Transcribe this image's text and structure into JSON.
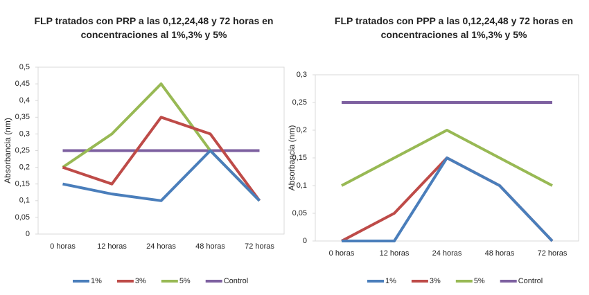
{
  "chart_data": [
    {
      "type": "line",
      "title": "FLP tratados con PRP a las 0,12,24,48 y 72 horas en concentraciones al 1%,3% y 5%",
      "y_label": "Absorbancia (nm)",
      "categories": [
        "0 horas",
        "12 horas",
        "24 horas",
        "48 horas",
        "72 horas"
      ],
      "series": [
        {
          "name": "1%",
          "color": "#4a7ebb",
          "values": [
            0.15,
            0.12,
            0.1,
            0.25,
            0.1
          ]
        },
        {
          "name": "3%",
          "color": "#be4b48",
          "values": [
            0.2,
            0.15,
            0.35,
            0.3,
            0.1
          ]
        },
        {
          "name": "5%",
          "color": "#98b954",
          "values": [
            0.2,
            0.3,
            0.45,
            0.25,
            0.1
          ]
        },
        {
          "name": "Control",
          "color": "#7d60a0",
          "values": [
            0.25,
            0.25,
            0.25,
            0.25,
            0.25
          ]
        }
      ],
      "ylim": [
        0,
        0.5
      ],
      "yticks": [
        0,
        {
          "value": 0.05,
          "label": "0,05"
        },
        {
          "value": 0.1,
          "label": "0,1"
        },
        {
          "value": 0.15,
          "label": "0,15"
        },
        {
          "value": 0.2,
          "label": "0,2"
        },
        {
          "value": 0.25,
          "label": "0,25"
        },
        {
          "value": 0.3,
          "label": "0,3"
        },
        {
          "value": 0.35,
          "label": "0,35"
        },
        {
          "value": 0.4,
          "label": "0,4"
        },
        {
          "value": 0.45,
          "label": "0,45"
        },
        {
          "value": 0.5,
          "label": "0,5"
        }
      ],
      "grid": false,
      "legend": "bottom"
    },
    {
      "type": "line",
      "title": "FLP tratados con PPP a las 0,12,24,48 y 72 horas en concentraciones al 1%,3% y 5%",
      "y_label": "Absorbancia (nm)",
      "categories": [
        "0 horas",
        "12 horas",
        "24 horas",
        "48 horas",
        "72 horas"
      ],
      "series": [
        {
          "name": "1%",
          "color": "#4a7ebb",
          "values": [
            0,
            0,
            0.15,
            0.1,
            0
          ]
        },
        {
          "name": "3%",
          "color": "#be4b48",
          "values": [
            0,
            0.05,
            0.15,
            0.1,
            0
          ]
        },
        {
          "name": "5%",
          "color": "#98b954",
          "values": [
            0.1,
            0.15,
            0.2,
            0.15,
            0.1
          ]
        },
        {
          "name": "Control",
          "color": "#7d60a0",
          "values": [
            0.25,
            0.25,
            0.25,
            0.25,
            0.25
          ]
        }
      ],
      "ylim": [
        0,
        0.3
      ],
      "yticks": [
        0,
        {
          "value": 0.05,
          "label": "0,05"
        },
        {
          "value": 0.1,
          "label": "0,1"
        },
        {
          "value": 0.15,
          "label": "0,15"
        },
        {
          "value": 0.2,
          "label": "0,2"
        },
        {
          "value": 0.25,
          "label": "0,25"
        },
        {
          "value": 0.3,
          "label": "0,3"
        }
      ],
      "grid": false,
      "legend": "bottom"
    }
  ]
}
